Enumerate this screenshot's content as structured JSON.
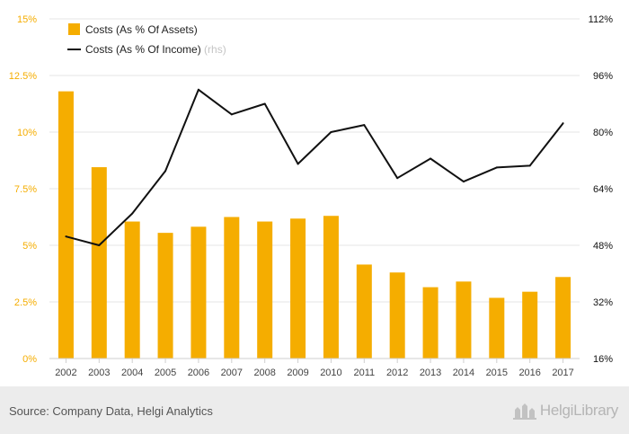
{
  "chart_data": {
    "type": "bar",
    "categories": [
      "2002",
      "2003",
      "2004",
      "2005",
      "2006",
      "2007",
      "2008",
      "2009",
      "2010",
      "2011",
      "2012",
      "2013",
      "2014",
      "2015",
      "2016",
      "2017"
    ],
    "series": [
      {
        "name": "Costs (As % Of Assets)",
        "type": "bar",
        "axis": "left",
        "color": "#f5ad00",
        "values": [
          11.8,
          8.45,
          6.05,
          5.55,
          5.82,
          6.25,
          6.05,
          6.18,
          6.3,
          4.15,
          3.8,
          3.15,
          3.4,
          2.68,
          2.95,
          3.6
        ]
      },
      {
        "name": "Costs (As % Of Income)",
        "type": "line",
        "axis": "right",
        "color": "#111111",
        "values": [
          50.5,
          48,
          57,
          69,
          92,
          85,
          88,
          71,
          80,
          82,
          67,
          72.5,
          66,
          70,
          70.5,
          82.5
        ]
      }
    ],
    "yleft": {
      "lim": [
        0,
        15
      ],
      "ticks": [
        "0%",
        "2.5%",
        "5%",
        "7.5%",
        "10%",
        "12.5%",
        "15%"
      ],
      "color": "#f5ad00"
    },
    "yright": {
      "lim": [
        16,
        112
      ],
      "ticks": [
        "16%",
        "32%",
        "48%",
        "64%",
        "80%",
        "96%",
        "112%"
      ],
      "color": "#111111"
    },
    "legend": {
      "placement": "top-left",
      "rhs_suffix": "(rhs)"
    },
    "grid": true
  },
  "footer": {
    "source": "Source: Company Data, Helgi Analytics",
    "brand": "HelgiLibrary"
  }
}
